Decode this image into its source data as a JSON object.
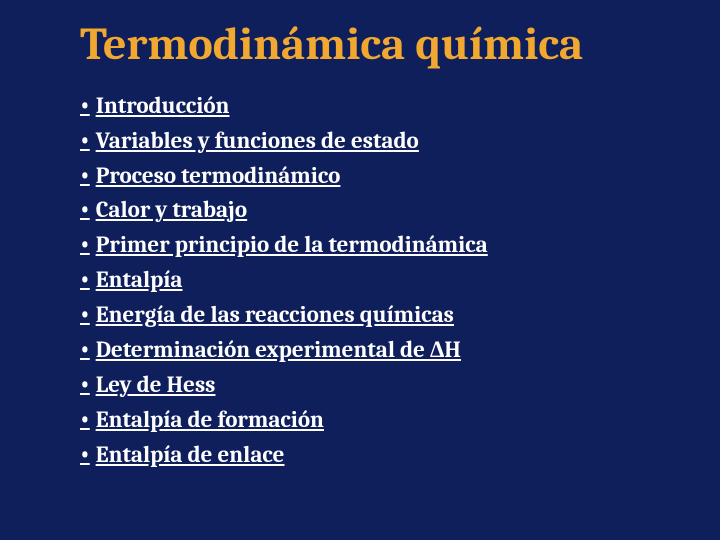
{
  "slide": {
    "title": "Termodinámica química",
    "background_color": "#0f1f5c",
    "title_color": "#f0a830",
    "text_color": "#ffffff",
    "title_fontsize": 46,
    "item_fontsize": 23,
    "bullets": [
      "Introducción",
      "Variables y funciones de estado",
      "Proceso termodinámico",
      "Calor y trabajo",
      "Primer principio de la termodinámica",
      "Entalpía",
      "Energía de las reacciones químicas",
      "Determinación experimental de ΔH",
      "Ley de Hess",
      "Entalpía de formación",
      "Entalpía de enlace"
    ]
  }
}
